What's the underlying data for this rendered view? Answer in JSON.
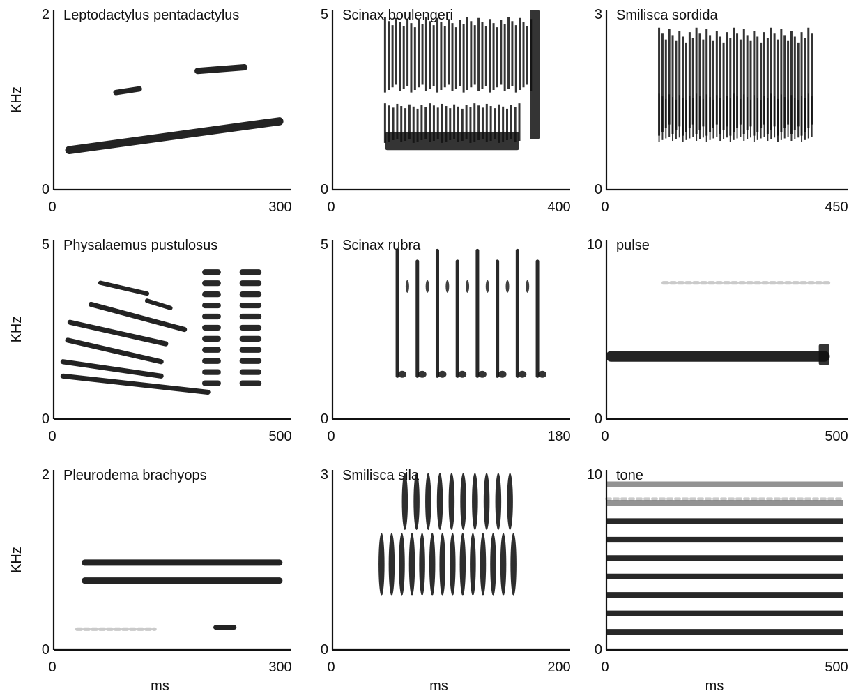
{
  "figure": {
    "shared_ylabel": "KHz",
    "shared_xlabel": "ms"
  },
  "chart_data": [
    {
      "type": "spectrogram",
      "title": "Leptodactylus pentadactylus",
      "xlim": [
        0,
        300
      ],
      "ylim": [
        0,
        2
      ],
      "xticks": [
        "0",
        "300"
      ],
      "yticks": [
        "0",
        "2"
      ],
      "ylabel": "KHz",
      "xlabel": "",
      "color": "#111111",
      "features": [
        {
          "kind": "sweep",
          "x": [
            20,
            290
          ],
          "y": [
            0.44,
            0.76
          ],
          "thickness": 0.09
        },
        {
          "kind": "sweep",
          "x": [
            80,
            110
          ],
          "y": [
            1.08,
            1.12
          ],
          "thickness": 0.06
        },
        {
          "kind": "sweep",
          "x": [
            185,
            245
          ],
          "y": [
            1.32,
            1.36
          ],
          "thickness": 0.07
        }
      ]
    },
    {
      "type": "spectrogram",
      "title": "Scinax boulengeri",
      "xlim": [
        0,
        400
      ],
      "ylim": [
        0,
        5
      ],
      "xticks": [
        "0",
        "400"
      ],
      "yticks": [
        "0",
        "5"
      ],
      "ylabel": "",
      "xlabel": "",
      "color": "#111111",
      "features": [
        {
          "kind": "pulses",
          "x": [
            90,
            340
          ],
          "y": [
            2.7,
            4.8
          ],
          "count": 40,
          "width": 3
        },
        {
          "kind": "pulses",
          "x": [
            90,
            320
          ],
          "y": [
            1.3,
            2.4
          ],
          "count": 34,
          "width": 3
        },
        {
          "kind": "block",
          "x": [
            90,
            320
          ],
          "y": [
            1.1,
            1.6
          ]
        },
        {
          "kind": "block",
          "x": [
            338,
            355
          ],
          "y": [
            1.4,
            5.0
          ]
        }
      ]
    },
    {
      "type": "spectrogram",
      "title": "Smilisca sordida",
      "xlim": [
        0,
        450
      ],
      "ylim": [
        0,
        3
      ],
      "xticks": [
        "0",
        "450"
      ],
      "yticks": [
        "0",
        "3"
      ],
      "ylabel": "",
      "xlabel": "",
      "color": "#111111",
      "features": [
        {
          "kind": "pulses",
          "x": [
            100,
            390
          ],
          "y": [
            0.9,
            2.7
          ],
          "count": 46,
          "width": 3
        },
        {
          "kind": "pulses",
          "x": [
            100,
            390
          ],
          "y": [
            0.8,
            1.6
          ],
          "count": 46,
          "width": 2
        }
      ]
    },
    {
      "type": "spectrogram",
      "title": "Physalaemus pustulosus",
      "xlim": [
        0,
        500
      ],
      "ylim": [
        0,
        5
      ],
      "xticks": [
        "0",
        "500"
      ],
      "yticks": [
        "0",
        "5"
      ],
      "ylabel": "KHz",
      "xlabel": "",
      "color": "#111111",
      "features": [
        {
          "kind": "sweep",
          "x": [
            20,
            330
          ],
          "y": [
            1.2,
            0.75
          ],
          "thickness": 0.14
        },
        {
          "kind": "sweep",
          "x": [
            20,
            230
          ],
          "y": [
            1.6,
            1.2
          ],
          "thickness": 0.14
        },
        {
          "kind": "sweep",
          "x": [
            30,
            230
          ],
          "y": [
            2.2,
            1.6
          ],
          "thickness": 0.14
        },
        {
          "kind": "sweep",
          "x": [
            35,
            240
          ],
          "y": [
            2.7,
            2.1
          ],
          "thickness": 0.14
        },
        {
          "kind": "sweep",
          "x": [
            80,
            280
          ],
          "y": [
            3.2,
            2.5
          ],
          "thickness": 0.14
        },
        {
          "kind": "sweep",
          "x": [
            100,
            200
          ],
          "y": [
            3.8,
            3.5
          ],
          "thickness": 0.12
        },
        {
          "kind": "sweep",
          "x": [
            200,
            250
          ],
          "y": [
            3.3,
            3.1
          ],
          "thickness": 0.12
        },
        {
          "kind": "bars",
          "x": [
            318,
            358
          ],
          "y": [
            1.0,
            4.1
          ],
          "count": 11,
          "height": 0.16
        },
        {
          "kind": "bars",
          "x": [
            398,
            445
          ],
          "y": [
            1.0,
            4.1
          ],
          "count": 11,
          "height": 0.16
        }
      ]
    },
    {
      "type": "spectrogram",
      "title": "Scinax rubra",
      "xlim": [
        0,
        180
      ],
      "ylim": [
        0,
        5
      ],
      "xticks": [
        "0",
        "180"
      ],
      "yticks": [
        "0",
        "5"
      ],
      "ylabel": "",
      "xlabel": "",
      "color": "#111111",
      "features": [
        {
          "kind": "notes",
          "x": [
            50,
            158
          ],
          "y": [
            1.2,
            4.7
          ],
          "count": 8,
          "width": 5,
          "dot_y": 3.7
        }
      ]
    },
    {
      "type": "spectrogram",
      "title": "pulse",
      "xlim": [
        0,
        500
      ],
      "ylim": [
        0,
        10
      ],
      "xticks": [
        "0",
        "500"
      ],
      "yticks": [
        "0",
        "10"
      ],
      "ylabel": "",
      "xlabel": "",
      "color": "#111111",
      "features": [
        {
          "kind": "sweep",
          "x": [
            10,
            460
          ],
          "y": [
            3.5,
            3.5
          ],
          "thickness": 0.6
        },
        {
          "kind": "faint",
          "x": [
            120,
            470
          ],
          "y": [
            7.6,
            7.6
          ],
          "thickness": 0.2
        },
        {
          "kind": "block",
          "x": [
            448,
            470
          ],
          "y": [
            3.0,
            4.2
          ]
        }
      ]
    },
    {
      "type": "spectrogram",
      "title": "Pleurodema brachyops",
      "xlim": [
        0,
        300
      ],
      "ylim": [
        0,
        2
      ],
      "xticks": [
        "0",
        "300"
      ],
      "yticks": [
        "0",
        "2"
      ],
      "ylabel": "KHz",
      "xlabel": "ms",
      "color": "#111111",
      "features": [
        {
          "kind": "sweep",
          "x": [
            40,
            290
          ],
          "y": [
            0.97,
            0.97
          ],
          "thickness": 0.07
        },
        {
          "kind": "sweep",
          "x": [
            40,
            290
          ],
          "y": [
            0.77,
            0.77
          ],
          "thickness": 0.07
        },
        {
          "kind": "sweep",
          "x": [
            208,
            232
          ],
          "y": [
            0.25,
            0.25
          ],
          "thickness": 0.05
        },
        {
          "kind": "faint",
          "x": [
            30,
            130
          ],
          "y": [
            0.23,
            0.23
          ],
          "thickness": 0.04
        }
      ]
    },
    {
      "type": "spectrogram",
      "title": "Smilisca sila",
      "xlim": [
        0,
        200
      ],
      "ylim": [
        0,
        3
      ],
      "xticks": [
        "0",
        "200"
      ],
      "yticks": [
        "0",
        "3"
      ],
      "ylabel": "",
      "xlabel": "ms",
      "color": "#111111",
      "features": [
        {
          "kind": "ovals",
          "x": [
            62,
            152
          ],
          "y": [
            2.0,
            2.95
          ],
          "count": 10,
          "width": 6
        },
        {
          "kind": "ovals",
          "x": [
            42,
            155
          ],
          "y": [
            0.9,
            1.95
          ],
          "count": 14,
          "width": 6
        }
      ]
    },
    {
      "type": "spectrogram",
      "title": "tone",
      "xlim": [
        0,
        500
      ],
      "ylim": [
        0,
        10
      ],
      "xticks": [
        "0",
        "500"
      ],
      "yticks": [
        "0",
        "10"
      ],
      "ylabel": "",
      "xlabel": "ms",
      "color": "#111111",
      "features": [
        {
          "kind": "harmonics",
          "x": [
            0,
            500
          ],
          "y": [
            1.0,
            9.2
          ],
          "count": 9,
          "thickness": 0.32
        },
        {
          "kind": "faint",
          "x": [
            0,
            500
          ],
          "y": [
            8.4,
            8.4
          ],
          "thickness": 0.15
        }
      ]
    }
  ]
}
